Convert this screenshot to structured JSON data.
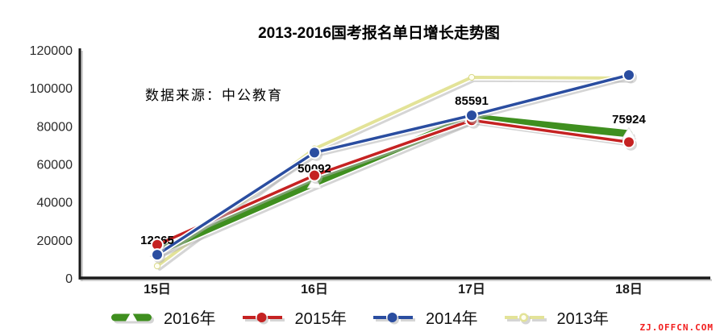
{
  "page": {
    "title": "2013-2016国考报名单日增长走势图",
    "source_note": "数据来源：中公教育",
    "watermark": "ZJ.OFFCN.COM"
  },
  "chart_data": {
    "type": "line",
    "title": "2013-2016国考报名单日增长走势图",
    "categories": [
      "15日",
      "16日",
      "17日",
      "18日"
    ],
    "series": [
      {
        "name": "2016年",
        "color": "#3f8f1f",
        "marker": "triangle",
        "line_width": 9,
        "values": [
          14000,
          50092,
          84500,
          75924
        ]
      },
      {
        "name": "2015年",
        "color": "#c52222",
        "marker": "circle",
        "line_width": 3.5,
        "values": [
          17500,
          54000,
          83000,
          71500
        ]
      },
      {
        "name": "2014年",
        "color": "#2a4da0",
        "marker": "circle",
        "line_width": 3.5,
        "values": [
          12265,
          66000,
          85591,
          106800
        ]
      },
      {
        "name": "2013年",
        "color": "#e3e398",
        "marker": "dot",
        "line_width": 4,
        "values": [
          6300,
          68000,
          105600,
          105200
        ]
      }
    ],
    "point_labels": [
      {
        "text": "12265",
        "category": "15日",
        "value": 12265
      },
      {
        "text": "50092",
        "category": "16日",
        "value": 50092
      },
      {
        "text": "85591",
        "category": "17日",
        "value": 85591
      },
      {
        "text": "75924",
        "category": "18日",
        "value": 75924
      }
    ],
    "ylim": [
      0,
      120000
    ],
    "yticks": [
      "0",
      "20000",
      "40000",
      "60000",
      "80000",
      "100000",
      "120000"
    ],
    "xlabel": "",
    "ylabel": "",
    "grid": false,
    "legend_position": "bottom"
  }
}
